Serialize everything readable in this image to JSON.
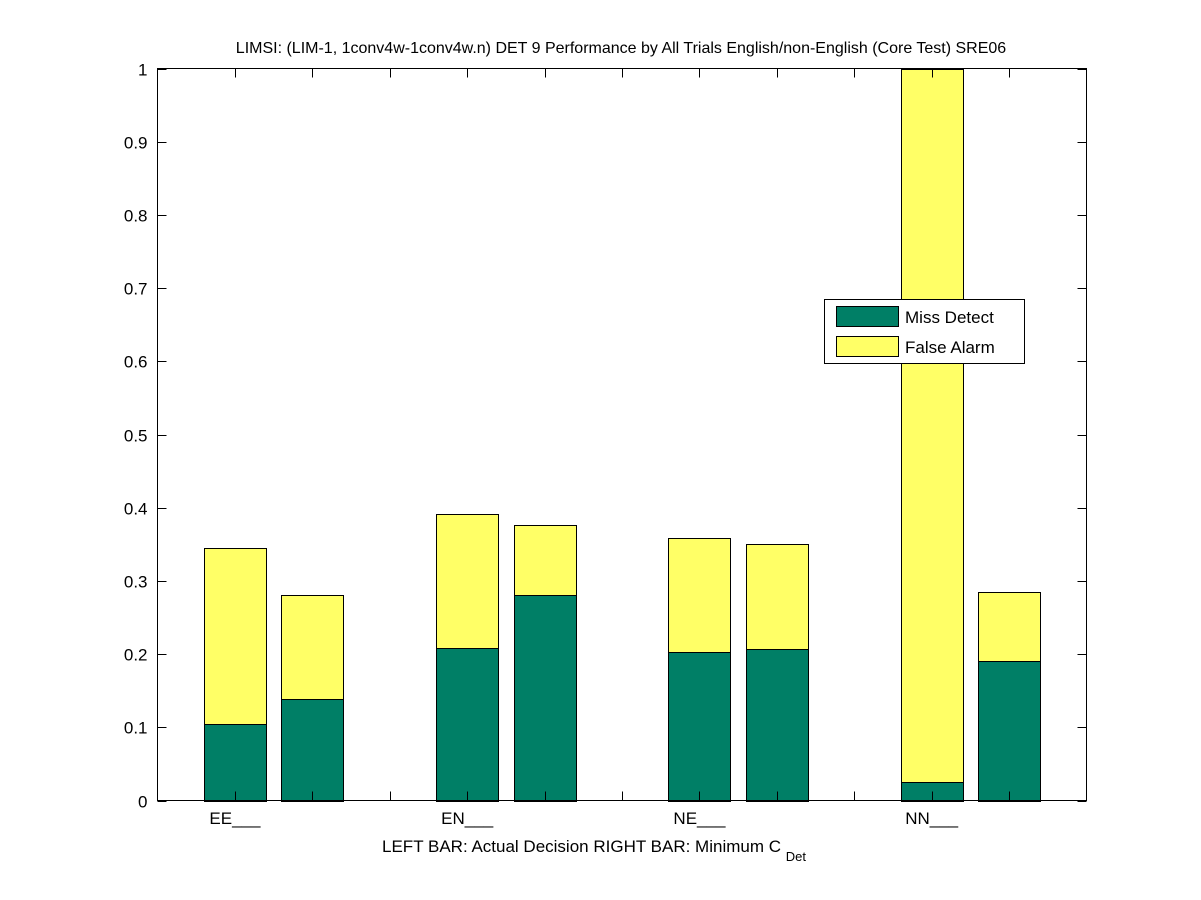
{
  "chart_data": {
    "type": "bar",
    "stacked": true,
    "title": "LIMSI: (LIM-1, 1conv4w-1conv4w.n) DET 9 Performance by All Trials English/non-English (Core Test) SRE06",
    "xlabel": {
      "left_part": "LEFT BAR: Actual Decision",
      "right_part": "RIGHT BAR: Minimum C",
      "subscript": "Det"
    },
    "ylabel": "",
    "ylim": [
      0,
      1
    ],
    "yticks": [
      "0",
      "0.1",
      "0.2",
      "0.3",
      "0.4",
      "0.5",
      "0.6",
      "0.7",
      "0.8",
      "0.9",
      "1"
    ],
    "yticks_values": [
      0,
      0.1,
      0.2,
      0.3,
      0.4,
      0.5,
      0.6,
      0.7,
      0.8,
      0.9,
      1
    ],
    "categories": [
      "EE___",
      "EN___",
      "NE___",
      "NN___"
    ],
    "bars_per_category": [
      "Actual Decision",
      "Minimum CDet"
    ],
    "series": [
      {
        "name": "Miss Detect",
        "color": "#007f66",
        "values": [
          [
            0.104,
            0.138
          ],
          [
            0.209,
            0.281
          ],
          [
            0.203,
            0.207
          ],
          [
            0.025,
            0.19
          ]
        ]
      },
      {
        "name": "False Alarm",
        "color": "#ffff66",
        "values": [
          [
            0.241,
            0.143
          ],
          [
            0.183,
            0.096
          ],
          [
            0.156,
            0.144
          ],
          [
            0.975,
            0.095
          ]
        ]
      }
    ],
    "totals": [
      [
        0.345,
        0.281
      ],
      [
        0.392,
        0.377
      ],
      [
        0.359,
        0.351
      ],
      [
        1.0,
        0.285
      ]
    ],
    "legend": {
      "entries": [
        "Miss Detect",
        "False Alarm"
      ],
      "placement": "center-right"
    },
    "grid": false
  }
}
